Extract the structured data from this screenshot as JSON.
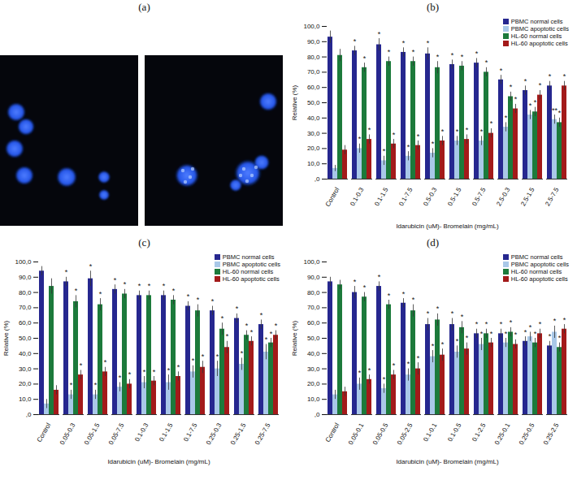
{
  "chart_data": [
    {
      "type": "image",
      "title": "(a)"
    },
    {
      "type": "bar",
      "title": "(b)",
      "xlabel": "Idarubicin (uM)- Bromelain (mg/mL)",
      "ylabel": "Relative (%)",
      "categories": [
        "Control",
        "0.1-0.3",
        "0.1-1.5",
        "0.1-7.5",
        "0.5-0.3",
        "0.5-1.5",
        "0.5-7.5",
        "2.5-0.3",
        "2.5-1.5",
        "2.5-7.5"
      ],
      "series": [
        {
          "name": "PBMC normal cells",
          "color": "#26278f",
          "values": [
            93,
            84,
            88,
            83,
            82,
            75,
            76,
            65,
            58,
            61
          ],
          "errors": [
            4,
            3,
            4,
            3,
            4,
            3,
            3,
            3,
            3,
            3
          ],
          "significance": [
            null,
            "*",
            "*",
            "*",
            "*",
            "*",
            "*",
            "*",
            "*",
            "*"
          ]
        },
        {
          "name": "PBMC apoptotic cells",
          "color": "#a9c8e8",
          "values": [
            7,
            20,
            12,
            15,
            17,
            25,
            25,
            34,
            42,
            39
          ],
          "errors": [
            2,
            3,
            3,
            3,
            3,
            3,
            3,
            3,
            3,
            3
          ],
          "significance": [
            null,
            "*",
            "*",
            "*",
            "*",
            "*",
            "*",
            "*",
            "*",
            "**"
          ]
        },
        {
          "name": "HL-60 normal cells",
          "color": "#1c7a3b",
          "values": [
            81,
            73,
            77,
            77,
            73,
            74,
            70,
            54,
            44,
            37
          ],
          "errors": [
            4,
            3,
            3,
            3,
            4,
            3,
            3,
            3,
            3,
            3
          ],
          "significance": [
            null,
            "*",
            "*",
            "*",
            "*",
            "*",
            "*",
            "*",
            "*",
            "*"
          ]
        },
        {
          "name": "HL-60 apoptotic cells",
          "color": "#a31a1a",
          "values": [
            19,
            26,
            23,
            22,
            25,
            26,
            30,
            46,
            55,
            61
          ],
          "errors": [
            3,
            3,
            3,
            3,
            3,
            3,
            3,
            3,
            3,
            3
          ],
          "significance": [
            null,
            "*",
            "*",
            "*",
            "*",
            "*",
            "*",
            "*",
            "*",
            "*"
          ]
        }
      ],
      "ylim": [
        0,
        100
      ],
      "yticks": [
        {
          "value": 0,
          "label": ",0"
        },
        {
          "value": 10,
          "label": "10,0"
        },
        {
          "value": 20,
          "label": "20,0"
        },
        {
          "value": 30,
          "label": "30,0"
        },
        {
          "value": 40,
          "label": "40,0"
        },
        {
          "value": 50,
          "label": "50,0"
        },
        {
          "value": 60,
          "label": "60,0"
        },
        {
          "value": 70,
          "label": "70,0"
        },
        {
          "value": 80,
          "label": "80,0"
        },
        {
          "value": 90,
          "label": "90,0"
        },
        {
          "value": 100,
          "label": "100,0"
        }
      ],
      "legend": "top-right"
    },
    {
      "type": "bar",
      "title": "(c)",
      "xlabel": "Idarubicin (uM)- Bromelain (mg/mL)",
      "ylabel": "Relative (%)",
      "categories": [
        "Control",
        "0.05-0.3",
        "0.05-1.5",
        "0.05-7.5",
        "0.1-0.3",
        "0.1-1.5",
        "0.1-7.5",
        "0.25-0.3",
        "0.25-1.5",
        "0.25-7.5"
      ],
      "series": [
        {
          "name": "PBMC normal cells",
          "color": "#26278f",
          "values": [
            94,
            87,
            89,
            82,
            78,
            78,
            71,
            68,
            63,
            59
          ],
          "errors": [
            3,
            3,
            5,
            3,
            3,
            3,
            3,
            3,
            3,
            3
          ],
          "significance": [
            null,
            "*",
            "*",
            "*",
            "*",
            "*",
            "*",
            "*",
            "*",
            "*"
          ]
        },
        {
          "name": "PBMC apoptotic cells",
          "color": "#a9c8e8",
          "values": [
            7,
            13,
            13,
            18,
            21,
            21,
            28,
            30,
            33,
            41
          ],
          "errors": [
            3,
            3,
            3,
            3,
            4,
            5,
            4,
            5,
            4,
            5
          ],
          "significance": [
            null,
            "*",
            "*",
            "*",
            "*",
            "*",
            "*",
            "*",
            "*",
            "*"
          ]
        },
        {
          "name": "HL-60 normal cells",
          "color": "#1c7a3b",
          "values": [
            84,
            74,
            72,
            79,
            78,
            75,
            68,
            56,
            52,
            47
          ],
          "errors": [
            5,
            4,
            4,
            3,
            3,
            3,
            4,
            4,
            3,
            3
          ],
          "significance": [
            null,
            "*",
            "*",
            "*",
            "*",
            "*",
            "*",
            "*",
            "*",
            "*"
          ]
        },
        {
          "name": "HL-60 apoptotic cells",
          "color": "#a31a1a",
          "values": [
            16,
            26,
            28,
            20,
            22,
            25,
            31,
            44,
            48,
            52
          ],
          "errors": [
            3,
            3,
            3,
            3,
            3,
            3,
            4,
            4,
            3,
            3
          ],
          "significance": [
            null,
            "*",
            "*",
            "*",
            "*",
            "*",
            "*",
            "*",
            "*",
            "*"
          ]
        }
      ],
      "ylim": [
        0,
        100
      ],
      "yticks": [
        {
          "value": 0,
          "label": ",0"
        },
        {
          "value": 10,
          "label": "10,0"
        },
        {
          "value": 20,
          "label": "20,0"
        },
        {
          "value": 30,
          "label": "30,0"
        },
        {
          "value": 40,
          "label": "40,0"
        },
        {
          "value": 50,
          "label": "50,0"
        },
        {
          "value": 60,
          "label": "60,0"
        },
        {
          "value": 70,
          "label": "70,0"
        },
        {
          "value": 80,
          "label": "80,0"
        },
        {
          "value": 90,
          "label": "90,0"
        },
        {
          "value": 100,
          "label": "100,0"
        }
      ],
      "legend": "top-right"
    },
    {
      "type": "bar",
      "title": "(d)",
      "xlabel": "Idarubicin (uM)- Bromelain (mg/mL)",
      "ylabel": "Relative (%)",
      "categories": [
        "Control",
        "0.05-0.1",
        "0.05-0.5",
        "0.05-2.5",
        "0.1-0.1",
        "0.1-0.5",
        "0.1-2.5",
        "0.25-0.1",
        "0.25-0.5",
        "0.25-2.5"
      ],
      "series": [
        {
          "name": "PBMC normal cells",
          "color": "#26278f",
          "values": [
            87,
            80,
            84,
            73,
            59,
            59,
            53,
            53,
            48,
            45
          ],
          "errors": [
            3,
            4,
            3,
            3,
            4,
            4,
            3,
            3,
            3,
            3
          ],
          "significance": [
            null,
            "*",
            "*",
            "*",
            "*",
            "*",
            "*",
            "*",
            "*",
            "*"
          ]
        },
        {
          "name": "PBMC apoptotic cells",
          "color": "#a9c8e8",
          "values": [
            13,
            20,
            17,
            26,
            38,
            41,
            46,
            47,
            51,
            54
          ],
          "errors": [
            3,
            4,
            3,
            4,
            4,
            4,
            4,
            3,
            3,
            4
          ],
          "significance": [
            null,
            "*",
            "*",
            "*",
            "*",
            "*",
            "*",
            "*",
            "*",
            "*"
          ]
        },
        {
          "name": "HL-60 normal cells",
          "color": "#1c7a3b",
          "values": [
            85,
            77,
            72,
            68,
            62,
            57,
            53,
            54,
            47,
            44
          ],
          "errors": [
            3,
            3,
            3,
            4,
            4,
            4,
            3,
            3,
            3,
            3
          ],
          "significance": [
            null,
            "*",
            "*",
            "*",
            "*",
            "*",
            "*",
            "*",
            "*",
            "*"
          ]
        },
        {
          "name": "HL-60 apoptotic cells",
          "color": "#a31a1a",
          "values": [
            15,
            23,
            26,
            30,
            39,
            43,
            47,
            46,
            53,
            56
          ],
          "errors": [
            3,
            3,
            3,
            4,
            4,
            4,
            3,
            3,
            3,
            3
          ],
          "significance": [
            null,
            "*",
            "*",
            "*",
            "*",
            "*",
            "*",
            "*",
            "*",
            "*"
          ]
        }
      ],
      "ylim": [
        0,
        100
      ],
      "yticks": [
        {
          "value": 0,
          "label": ",0"
        },
        {
          "value": 10,
          "label": "10,0"
        },
        {
          "value": 20,
          "label": "20,0"
        },
        {
          "value": 30,
          "label": "30,0"
        },
        {
          "value": 40,
          "label": "40,0"
        },
        {
          "value": 50,
          "label": "50,0"
        },
        {
          "value": 60,
          "label": "60,0"
        },
        {
          "value": 70,
          "label": "70,0"
        },
        {
          "value": 80,
          "label": "80,0"
        },
        {
          "value": 90,
          "label": "90,0"
        },
        {
          "value": 100,
          "label": "100,0"
        }
      ],
      "legend": "top-right"
    }
  ]
}
